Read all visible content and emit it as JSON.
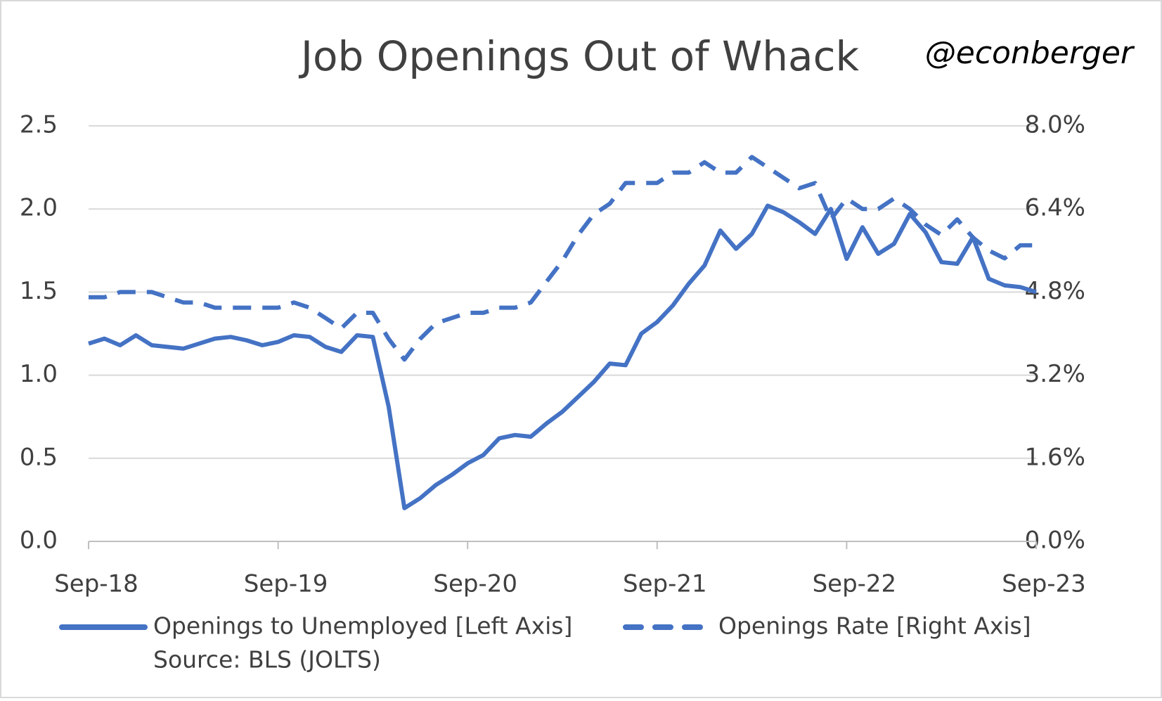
{
  "chart_data": {
    "type": "line",
    "title": "Job Openings Out of Whack",
    "handle": "@econberger",
    "source": "Source: BLS (JOLTS)",
    "categories": [
      "Sep-18",
      null,
      null,
      null,
      null,
      null,
      null,
      null,
      null,
      null,
      null,
      null,
      "Sep-19",
      null,
      null,
      null,
      null,
      null,
      null,
      null,
      null,
      null,
      null,
      null,
      "Sep-20",
      null,
      null,
      null,
      null,
      null,
      null,
      null,
      null,
      null,
      null,
      null,
      "Sep-21",
      null,
      null,
      null,
      null,
      null,
      null,
      null,
      null,
      null,
      null,
      null,
      "Sep-22",
      null,
      null,
      null,
      null,
      null,
      null,
      null,
      null,
      null,
      null,
      null,
      "Sep-23"
    ],
    "series": [
      {
        "name": "Openings to Unemployed [Left Axis]",
        "color": "#4472c4",
        "axis": "y",
        "dashed": false,
        "values": [
          1.19,
          1.22,
          1.18,
          1.24,
          1.18,
          1.17,
          1.16,
          1.19,
          1.22,
          1.23,
          1.21,
          1.18,
          1.2,
          1.24,
          1.23,
          1.17,
          1.14,
          1.24,
          1.23,
          0.81,
          0.2,
          0.26,
          0.34,
          0.4,
          0.47,
          0.52,
          0.62,
          0.64,
          0.63,
          0.71,
          0.78,
          0.87,
          0.96,
          1.07,
          1.06,
          1.25,
          1.32,
          1.42,
          1.55,
          1.66,
          1.87,
          1.76,
          1.85,
          2.02,
          1.98,
          1.92,
          1.85,
          2.0,
          1.7,
          1.89,
          1.73,
          1.79,
          1.97,
          1.86,
          1.68,
          1.67,
          1.83,
          1.58,
          1.54,
          1.53,
          1.5
        ]
      },
      {
        "name": "Openings Rate [Right Axis]",
        "color": "#4472c4",
        "axis": "y2",
        "dashed": true,
        "values": [
          4.7,
          4.7,
          4.8,
          4.8,
          4.8,
          4.7,
          4.6,
          4.6,
          4.5,
          4.5,
          4.5,
          4.5,
          4.5,
          4.6,
          4.5,
          4.3,
          4.1,
          4.4,
          4.4,
          3.9,
          3.5,
          3.9,
          4.2,
          4.3,
          4.4,
          4.4,
          4.5,
          4.5,
          4.6,
          5.0,
          5.4,
          5.9,
          6.3,
          6.5,
          6.9,
          6.9,
          6.9,
          7.1,
          7.1,
          7.3,
          7.1,
          7.1,
          7.4,
          7.2,
          7.0,
          6.8,
          6.9,
          6.2,
          6.6,
          6.4,
          6.4,
          6.6,
          6.4,
          6.1,
          5.9,
          6.2,
          5.85,
          5.6,
          5.45,
          5.7,
          5.7
        ]
      }
    ],
    "ylim": [
      0,
      2.5
    ],
    "yticks": [
      {
        "value": 0,
        "label": "0.0"
      },
      0.5,
      {
        "value": 1,
        "label": "1.0"
      },
      1.5,
      {
        "value": 2,
        "label": "2.0"
      },
      2.5
    ],
    "y2lim": [
      0,
      8
    ],
    "y2ticks": [
      {
        "value": 0,
        "label": "0.0%"
      },
      {
        "value": 1.6,
        "label": "1.6%"
      },
      {
        "value": 3.2,
        "label": "3.2%"
      },
      {
        "value": 4.8,
        "label": "4.8%"
      },
      {
        "value": 6.4,
        "label": "6.4%"
      },
      {
        "value": 8,
        "label": "8.0%"
      }
    ],
    "grid": true,
    "legend": "bottom"
  }
}
